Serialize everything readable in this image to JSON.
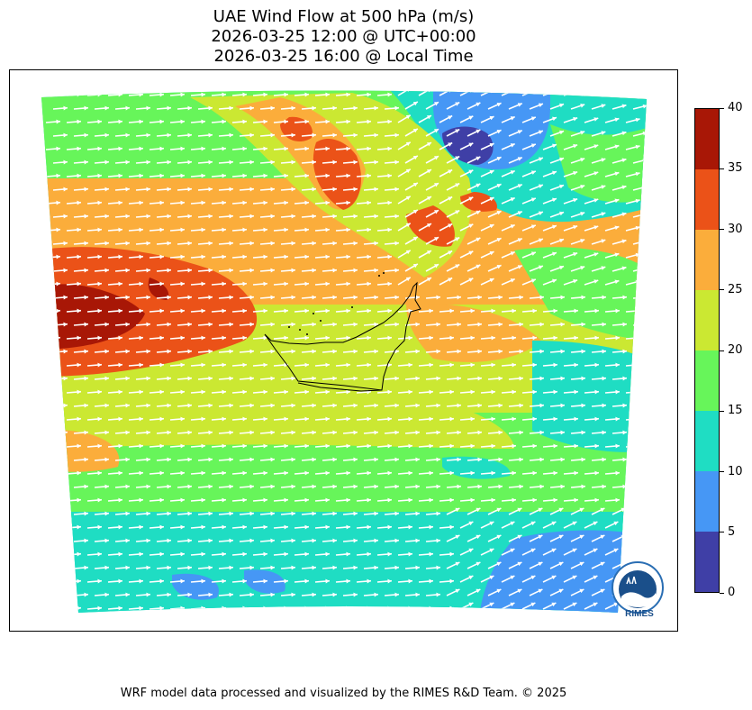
{
  "title": {
    "line1": "UAE Wind Flow at 500 hPa (m/s)",
    "line2": "2026-03-25 12:00 @ UTC+00:00",
    "line3": "2026-03-25 16:00 @ Local Time"
  },
  "colorbar": {
    "ticks": [
      "0",
      "5",
      "10",
      "15",
      "20",
      "25",
      "30",
      "35",
      "40"
    ],
    "colors": [
      "#3f3fa6",
      "#4697f5",
      "#1fddc3",
      "#67f55a",
      "#cbe832",
      "#fbad3b",
      "#eb5218",
      "#a81706"
    ]
  },
  "logo": {
    "text": "RIMES",
    "icon": "rimes-logo"
  },
  "footer": "WRF model data processed and visualized by the RIMES R&D Team. © 2025"
}
